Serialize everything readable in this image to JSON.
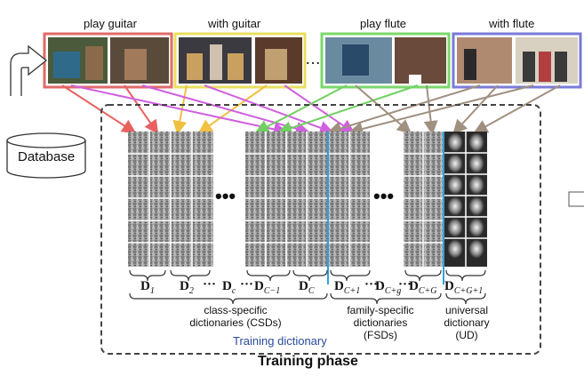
{
  "top_labels": {
    "play_guitar": "play guitar",
    "with_guitar": "with guitar",
    "play_flute": "play flute",
    "with_flute": "with flute",
    "ellipsis": "…"
  },
  "database_label": "Database",
  "dictionary_labels": {
    "d1": "D",
    "d1_sub": "1",
    "d2": "D",
    "d2_sub": "2",
    "dots1": "···",
    "dc": "D",
    "dc_sub": "c",
    "dots2": "···",
    "dcm1": "D",
    "dcm1_sub": "C−1",
    "dC": "D",
    "dC_sub": "C",
    "dcp1": "D",
    "dcp1_sub": "C+1",
    "dots3": "···",
    "dcg": "D",
    "dcg_sub": "C+g",
    "dots4": "···",
    "dcG": "D",
    "dcG_sub": "C+G",
    "dcG1": "D",
    "dcG1_sub": "C+G+1"
  },
  "captions": {
    "csd_line1": "class-specific",
    "csd_line2": "dictionaries (CSDs)",
    "fsd_line1": "family-specific",
    "fsd_line2": "dictionaries",
    "fsd_line3": "(FSDs)",
    "ud_line1": "universal",
    "ud_line2": "dictionary",
    "ud_line3": "(UD)"
  },
  "training_dictionary": "Training dictionary",
  "training_phase": "Training phase",
  "colors": {
    "guitar_frame": "#e06a6a",
    "with_guitar_frame": "#e8e060",
    "flute_frame": "#7ad86a",
    "with_flute_frame": "#7a7ad8",
    "arrow_red": "#e86060",
    "arrow_yellow": "#f0c040",
    "arrow_magenta": "#d060e0",
    "arrow_green": "#70d060",
    "arrow_gray": "#a09080",
    "divider_blue": "#30a0e0",
    "caption_blue": "#2a4a9a"
  }
}
